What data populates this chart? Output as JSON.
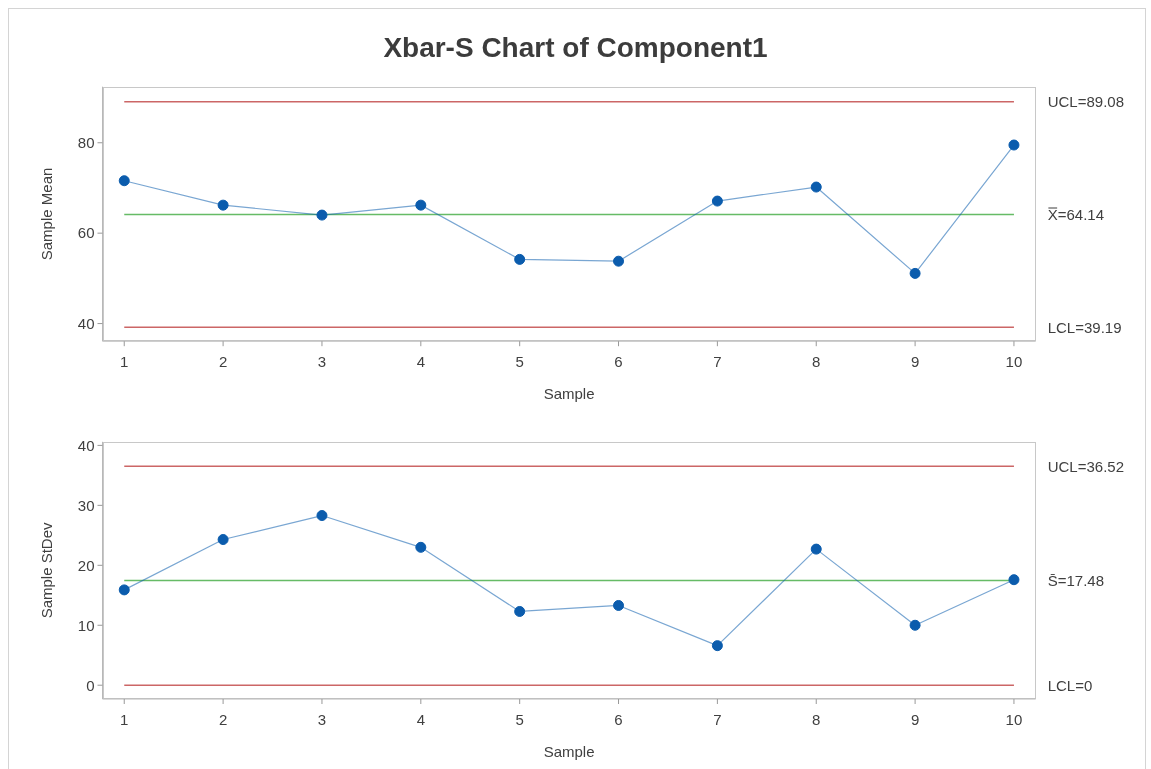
{
  "chart_data": [
    {
      "type": "line",
      "title": "Xbar-S Chart of Component1",
      "xlabel": "Sample",
      "ylabel": "Sample Mean",
      "x": [
        1,
        2,
        3,
        4,
        5,
        6,
        7,
        8,
        9,
        10
      ],
      "series": [
        {
          "color": "#0b5cad",
          "values": [
            71.6,
            66.2,
            64.0,
            66.2,
            54.2,
            53.8,
            67.1,
            70.2,
            51.1,
            79.5
          ]
        }
      ],
      "xlim": [
        0.78,
        10.22
      ],
      "xticks": [
        1,
        2,
        3,
        4,
        5,
        6,
        7,
        8,
        9,
        10
      ],
      "ylim": [
        36.1,
        92.4
      ],
      "yticks": [
        40,
        60,
        80
      ],
      "ref_lines": [
        {
          "axis": "y",
          "value": 89.08,
          "label": "UCL=89.08",
          "color": "#cc6666"
        },
        {
          "axis": "y",
          "value": 64.14,
          "label": "X̿=64.14",
          "color": "#66bb66"
        },
        {
          "axis": "y",
          "value": 39.19,
          "label": "LCL=39.19",
          "color": "#cc6666"
        }
      ],
      "marker": "circle",
      "line_style": "solid"
    },
    {
      "type": "line",
      "xlabel": "Sample",
      "ylabel": "Sample StDev",
      "x": [
        1,
        2,
        3,
        4,
        5,
        6,
        7,
        8,
        9,
        10
      ],
      "series": [
        {
          "color": "#0b5cad",
          "values": [
            15.9,
            24.3,
            28.3,
            23.0,
            12.3,
            13.3,
            6.6,
            22.7,
            10.0,
            17.6
          ]
        }
      ],
      "xlim": [
        0.78,
        10.22
      ],
      "xticks": [
        1,
        2,
        3,
        4,
        5,
        6,
        7,
        8,
        9,
        10
      ],
      "ylim": [
        -2.3,
        40.6
      ],
      "yticks": [
        0,
        10,
        20,
        30,
        40
      ],
      "ref_lines": [
        {
          "axis": "y",
          "value": 36.52,
          "label": "UCL=36.52",
          "color": "#cc6666"
        },
        {
          "axis": "y",
          "value": 17.48,
          "label": "S̄=17.48",
          "color": "#66bb66"
        },
        {
          "axis": "y",
          "value": 0,
          "label": "LCL=0",
          "color": "#cc6666"
        }
      ],
      "marker": "circle",
      "line_style": "solid"
    }
  ]
}
